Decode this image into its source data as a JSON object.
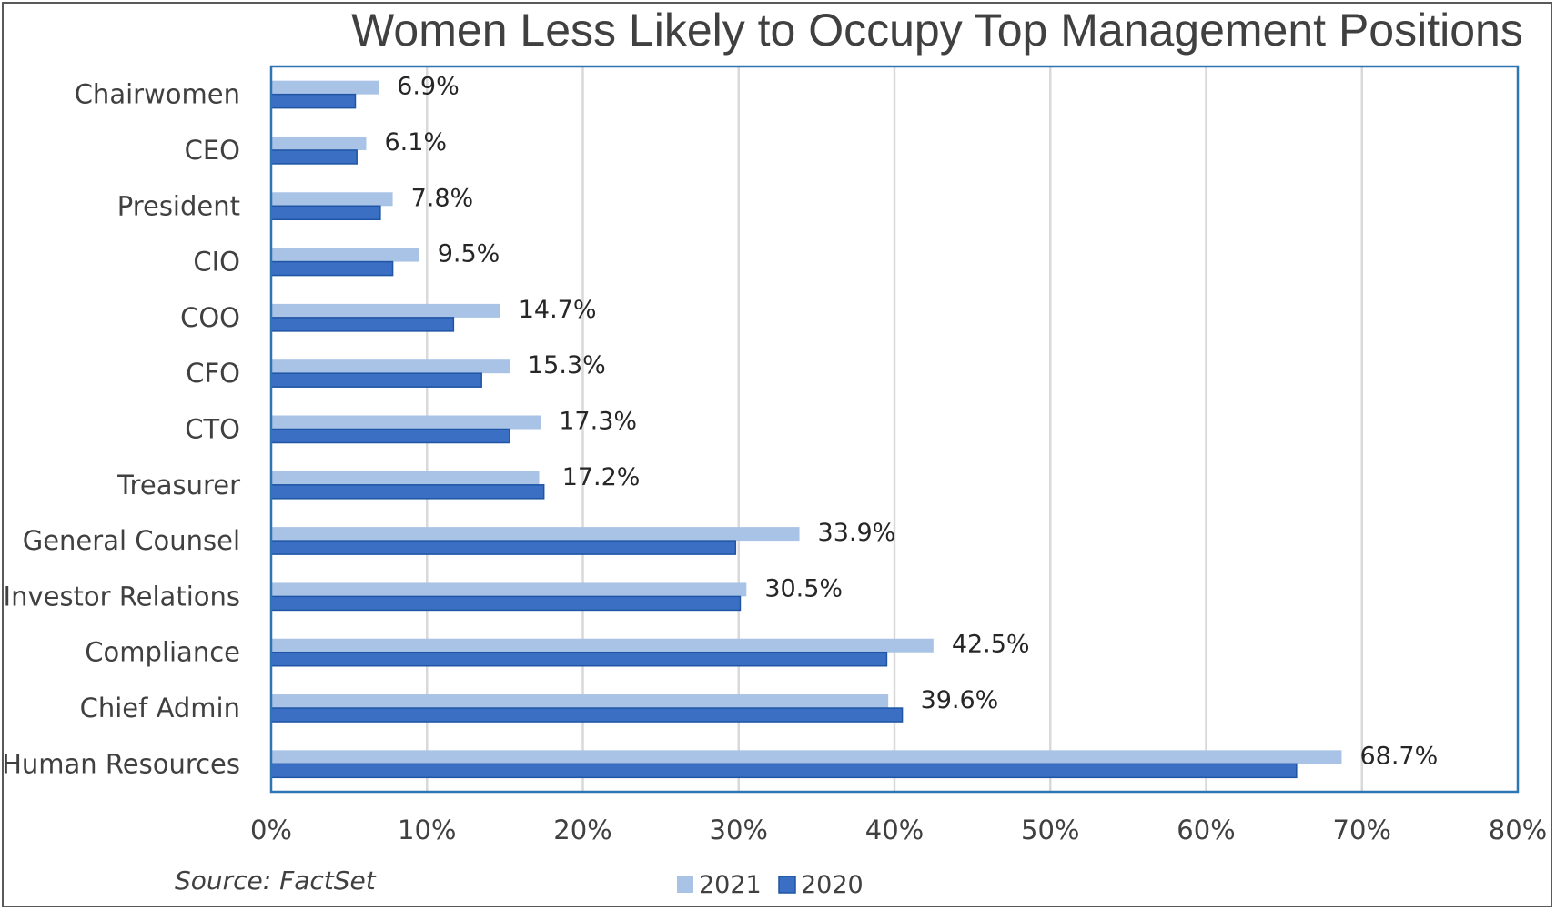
{
  "chart_data": {
    "type": "bar",
    "orientation": "horizontal",
    "title": "Women Less Likely to Occupy Top Management Positions",
    "categories": [
      "Chairwomen",
      "CEO",
      "President",
      "CIO",
      "COO",
      "CFO",
      "CTO",
      "Treasurer",
      "General Counsel",
      "Investor Relations",
      "Compliance",
      "Chief Admin",
      "Human Resources"
    ],
    "series": [
      {
        "name": "2021",
        "color": "#a9c3e6",
        "values": [
          6.9,
          6.1,
          7.8,
          9.5,
          14.7,
          15.3,
          17.3,
          17.2,
          33.9,
          30.5,
          42.5,
          39.6,
          68.7
        ]
      },
      {
        "name": "2020",
        "color": "#3a6fc4",
        "values": [
          5.4,
          5.5,
          7.0,
          7.8,
          11.7,
          13.5,
          15.3,
          17.5,
          29.8,
          30.1,
          39.5,
          40.5,
          65.8
        ]
      }
    ],
    "data_labels": [
      "6.9%",
      "6.1%",
      "7.8%",
      "9.5%",
      "14.7%",
      "15.3%",
      "17.3%",
      "17.2%",
      "33.9%",
      "30.5%",
      "42.5%",
      "39.6%",
      "68.7%"
    ],
    "x_ticks": [
      "0%",
      "10%",
      "20%",
      "30%",
      "40%",
      "50%",
      "60%",
      "70%",
      "80%"
    ],
    "xlim": [
      0,
      80
    ],
    "grid": true,
    "legend_position": "bottom",
    "source": "Source: FactSet",
    "colors": {
      "plot_border": "#2e75b6",
      "gridline": "#d9d9d9",
      "frame": "#595959"
    }
  }
}
